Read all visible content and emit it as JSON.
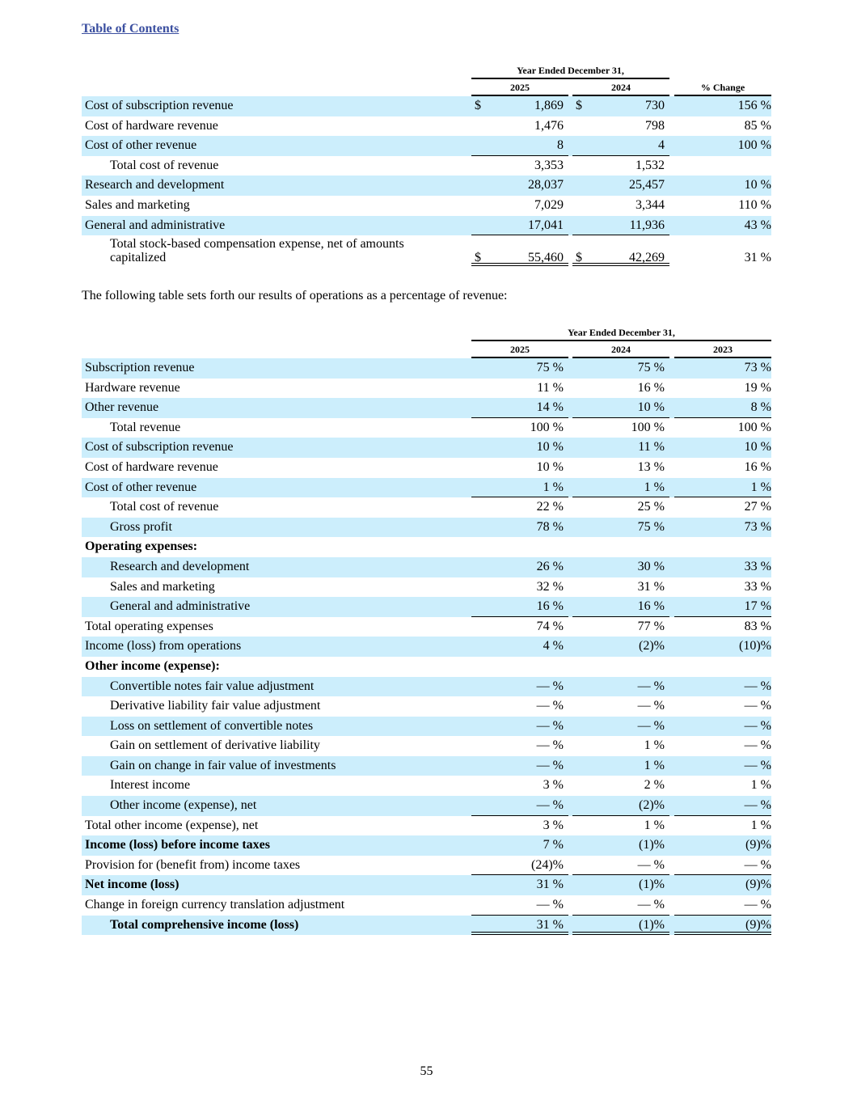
{
  "toc_link": "Table of Contents",
  "table1": {
    "group_header": "Year Ended December 31,",
    "columns": [
      "2025",
      "2024",
      "% Change"
    ],
    "rows": [
      {
        "label": "Cost of subscription revenue",
        "values": [
          "1,869",
          "730",
          "156 %"
        ],
        "prefix": "$"
      },
      {
        "label": "Cost of hardware revenue",
        "values": [
          "1,476",
          "798",
          "85 %"
        ]
      },
      {
        "label": "Cost of other revenue",
        "values": [
          "8",
          "4",
          "100 %"
        ]
      },
      {
        "label": "Total cost of revenue",
        "indent": true,
        "values": [
          "3,353",
          "1,532",
          ""
        ]
      },
      {
        "label": "Research and development",
        "values": [
          "28,037",
          "25,457",
          "10 %"
        ]
      },
      {
        "label": "Sales and marketing",
        "values": [
          "7,029",
          "3,344",
          "110 %"
        ]
      },
      {
        "label": "General and administrative",
        "values": [
          "17,041",
          "11,936",
          "43 %"
        ]
      },
      {
        "label": "Total stock-based compensation expense, net of amounts capitalized",
        "indent": true,
        "values": [
          "55,460",
          "42,269",
          "31 %"
        ],
        "prefix": "$"
      }
    ]
  },
  "paragraph": "The following table sets forth our results of operations as a percentage of revenue:",
  "table2": {
    "group_header": "Year Ended December 31,",
    "columns": [
      "2025",
      "2024",
      "2023"
    ],
    "rows": [
      {
        "label": "Subscription revenue",
        "values": [
          "75 %",
          "75 %",
          "73 %"
        ]
      },
      {
        "label": "Hardware revenue",
        "values": [
          "11 %",
          "16 %",
          "19 %"
        ]
      },
      {
        "label": "Other revenue",
        "values": [
          "14 %",
          "10 %",
          "8 %"
        ]
      },
      {
        "label": "Total revenue",
        "indent": true,
        "values": [
          "100 %",
          "100 %",
          "100 %"
        ]
      },
      {
        "label": "Cost of subscription revenue",
        "values": [
          "10 %",
          "11 %",
          "10 %"
        ]
      },
      {
        "label": "Cost of hardware revenue",
        "values": [
          "10 %",
          "13 %",
          "16 %"
        ]
      },
      {
        "label": "Cost of other revenue",
        "values": [
          "1 %",
          "1 %",
          "1 %"
        ]
      },
      {
        "label": "Total cost of revenue",
        "indent": true,
        "values": [
          "22 %",
          "25 %",
          "27 %"
        ]
      },
      {
        "label": "Gross profit",
        "indent": true,
        "values": [
          "78 %",
          "75 %",
          "73 %"
        ]
      },
      {
        "label": "Operating expenses:",
        "bold": true,
        "values": [
          "",
          "",
          ""
        ]
      },
      {
        "label": "Research and development",
        "indent": true,
        "values": [
          "26 %",
          "30 %",
          "33 %"
        ]
      },
      {
        "label": "Sales and marketing",
        "indent": true,
        "values": [
          "32 %",
          "31 %",
          "33 %"
        ]
      },
      {
        "label": "General and administrative",
        "indent": true,
        "values": [
          "16 %",
          "16 %",
          "17 %"
        ]
      },
      {
        "label": "Total operating expenses",
        "values": [
          "74 %",
          "77 %",
          "83 %"
        ]
      },
      {
        "label": "Income (loss) from operations",
        "values": [
          "4 %",
          "(2)%",
          "(10)%"
        ]
      },
      {
        "label": "Other income (expense):",
        "bold": true,
        "values": [
          "",
          "",
          ""
        ]
      },
      {
        "label": "Convertible notes fair value adjustment",
        "indent": true,
        "values": [
          "— %",
          "— %",
          "— %"
        ]
      },
      {
        "label": "Derivative liability fair value adjustment",
        "indent": true,
        "values": [
          "— %",
          "— %",
          "— %"
        ]
      },
      {
        "label": "Loss on settlement of convertible notes",
        "indent": true,
        "values": [
          "— %",
          "— %",
          "— %"
        ]
      },
      {
        "label": "Gain on settlement of derivative liability",
        "indent": true,
        "values": [
          "— %",
          "1 %",
          "— %"
        ]
      },
      {
        "label": "Gain on change in fair value of investments",
        "indent": true,
        "values": [
          "— %",
          "1 %",
          "— %"
        ]
      },
      {
        "label": "Interest income",
        "indent": true,
        "values": [
          "3 %",
          "2 %",
          "1 %"
        ]
      },
      {
        "label": "Other income (expense), net",
        "indent": true,
        "values": [
          "— %",
          "(2)%",
          "— %"
        ]
      },
      {
        "label": "Total other income (expense), net",
        "values": [
          "3 %",
          "1 %",
          "1 %"
        ]
      },
      {
        "label": "Income (loss) before income taxes",
        "bold": true,
        "values": [
          "7 %",
          "(1)%",
          "(9)%"
        ]
      },
      {
        "label": "Provision for (benefit from) income taxes",
        "values": [
          "(24)%",
          "— %",
          "— %"
        ]
      },
      {
        "label": "Net income (loss)",
        "bold": true,
        "values": [
          "31 %",
          "(1)%",
          "(9)%"
        ]
      },
      {
        "label": "Change in foreign currency translation adjustment",
        "values": [
          "— %",
          "— %",
          "— %"
        ]
      },
      {
        "label": "Total comprehensive income (loss)",
        "bold": true,
        "indent": true,
        "values": [
          "31 %",
          "(1)%",
          "(9)%"
        ]
      }
    ]
  },
  "page_number": "55",
  "colors": {
    "row_shade": "#cceefc",
    "link": "#3b4fa0"
  }
}
